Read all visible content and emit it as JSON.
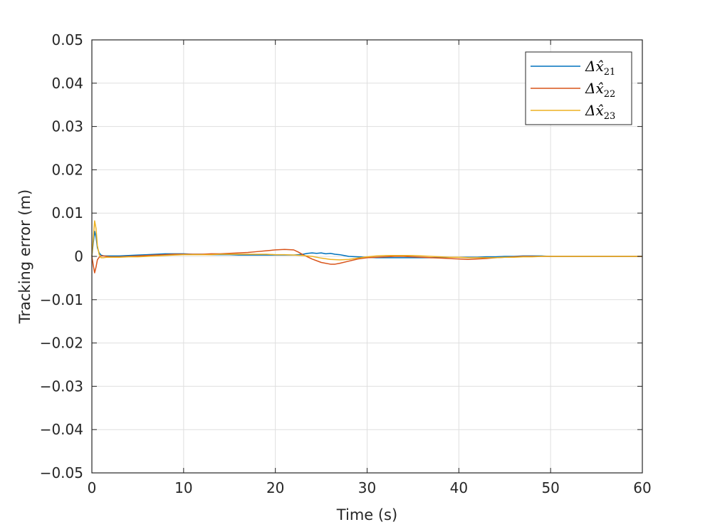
{
  "chart_data": {
    "type": "line",
    "title": "",
    "xlabel": "Time (s)",
    "ylabel": "Tracking error (m)",
    "xlim": [
      0,
      60
    ],
    "ylim": [
      -0.05,
      0.05
    ],
    "x_ticks": [
      0,
      10,
      20,
      30,
      40,
      50,
      60
    ],
    "x_tick_labels": [
      "0",
      "10",
      "20",
      "30",
      "40",
      "50",
      "60"
    ],
    "y_ticks": [
      -0.05,
      -0.04,
      -0.03,
      -0.02,
      -0.01,
      0,
      0.01,
      0.02,
      0.03,
      0.04,
      0.05
    ],
    "y_tick_labels": [
      "−0.05",
      "−0.04",
      "−0.03",
      "−0.02",
      "−0.01",
      "0",
      "0.01",
      "0.02",
      "0.03",
      "0.04",
      "0.05"
    ],
    "grid": true,
    "legend_position": "top-right",
    "series": [
      {
        "name": "Δx̂",
        "subscript": "21",
        "color": "#0072BD",
        "x": [
          0,
          0.15,
          0.3,
          0.45,
          0.6,
          0.8,
          1.0,
          1.3,
          1.6,
          2.0,
          3,
          4,
          5,
          6,
          7,
          8,
          9,
          10,
          11,
          12,
          13,
          14,
          15,
          16,
          17,
          18,
          19,
          20,
          21,
          22,
          22.5,
          23,
          23.5,
          24,
          24.5,
          25,
          25.5,
          26,
          26.5,
          27,
          27.5,
          28,
          29,
          30,
          31,
          32,
          33,
          34,
          35,
          36,
          37,
          38,
          39,
          40,
          41,
          42,
          43,
          44,
          45,
          46,
          47,
          48,
          49,
          50,
          52,
          54,
          56,
          58,
          60
        ],
        "y": [
          0,
          0.003,
          0.0058,
          0.0045,
          0.002,
          0.0008,
          0.0003,
          0.0001,
          0.0001,
          0.0001,
          0.0001,
          0.0002,
          0.0003,
          0.0004,
          0.0005,
          0.0006,
          0.0006,
          0.0006,
          0.0005,
          0.0005,
          0.0004,
          0.0004,
          0.0004,
          0.0003,
          0.0003,
          0.0003,
          0.0003,
          0.0003,
          0.0003,
          0.0003,
          0.0004,
          0.0005,
          0.0007,
          0.0008,
          0.0007,
          0.0008,
          0.0006,
          0.0007,
          0.0005,
          0.0004,
          0.0002,
          0.0,
          -0.0001,
          -0.0002,
          -0.0003,
          -0.0003,
          -0.0003,
          -0.0003,
          -0.0003,
          -0.0003,
          -0.0003,
          -0.0002,
          -0.0002,
          -0.0002,
          -0.0002,
          -0.0002,
          -0.0001,
          -0.0001,
          0.0,
          0.0,
          0.0001,
          0.0001,
          0.0001,
          0.0,
          0.0,
          0.0,
          0.0,
          0.0,
          0.0
        ]
      },
      {
        "name": "Δx̂",
        "subscript": "22",
        "color": "#D95319",
        "x": [
          0,
          0.15,
          0.3,
          0.45,
          0.6,
          0.8,
          1.0,
          1.3,
          1.6,
          2.0,
          3,
          4,
          5,
          6,
          7,
          8,
          9,
          10,
          11,
          12,
          13,
          14,
          15,
          16,
          17,
          18,
          19,
          20,
          21,
          22,
          22.5,
          23,
          24,
          25,
          26,
          26.5,
          27,
          28,
          29,
          30,
          31,
          32,
          33,
          34,
          35,
          36,
          37,
          38,
          39,
          40,
          41,
          42,
          43,
          44,
          45,
          46,
          47,
          48,
          49,
          50,
          52,
          54,
          56,
          58,
          60
        ],
        "y": [
          0,
          -0.002,
          -0.0038,
          -0.0025,
          -0.0008,
          -0.0002,
          0.0001,
          0.0001,
          0.0,
          -0.0001,
          -0.0001,
          0.0,
          0.0001,
          0.0002,
          0.0003,
          0.0004,
          0.0005,
          0.0005,
          0.0005,
          0.0005,
          0.0006,
          0.0006,
          0.0007,
          0.0008,
          0.0009,
          0.0011,
          0.0013,
          0.0015,
          0.0016,
          0.0015,
          0.001,
          0.0004,
          -0.0006,
          -0.0014,
          -0.0018,
          -0.0018,
          -0.0016,
          -0.0011,
          -0.0006,
          -0.0003,
          -0.0002,
          -0.0001,
          0.0,
          0.0,
          -0.0001,
          -0.0002,
          -0.0003,
          -0.0004,
          -0.0005,
          -0.0006,
          -0.0007,
          -0.0006,
          -0.0005,
          -0.0003,
          -0.0002,
          -0.0001,
          0.0,
          0.0,
          0.0,
          0.0,
          0.0,
          0.0,
          0.0,
          0.0,
          0.0
        ]
      },
      {
        "name": "Δx̂",
        "subscript": "23",
        "color": "#EDB120",
        "x": [
          0,
          0.15,
          0.3,
          0.45,
          0.6,
          0.8,
          1.0,
          1.3,
          1.6,
          2.0,
          3,
          4,
          5,
          6,
          7,
          8,
          9,
          10,
          11,
          12,
          13,
          14,
          15,
          16,
          17,
          18,
          19,
          20,
          21,
          22,
          23,
          24,
          25,
          26,
          27,
          28,
          29,
          30,
          31,
          32,
          33,
          34,
          35,
          36,
          37,
          38,
          39,
          40,
          41,
          42,
          43,
          44,
          45,
          46,
          47,
          48,
          49,
          50,
          52,
          54,
          56,
          58,
          60
        ],
        "y": [
          0,
          0.004,
          0.0082,
          0.0065,
          0.0025,
          0.0004,
          -0.0003,
          -0.0003,
          -0.0002,
          -0.0002,
          -0.0002,
          -0.0001,
          -0.0001,
          0.0,
          0.0001,
          0.0002,
          0.0003,
          0.0004,
          0.0004,
          0.0004,
          0.0004,
          0.0005,
          0.0005,
          0.0005,
          0.0005,
          0.0005,
          0.0005,
          0.0004,
          0.0004,
          0.0003,
          0.0002,
          0.0,
          -0.0004,
          -0.0007,
          -0.0008,
          -0.0007,
          -0.0004,
          -0.0001,
          0.0001,
          0.0002,
          0.0002,
          0.0002,
          0.0002,
          0.0001,
          0.0,
          -0.0001,
          -0.0002,
          -0.0002,
          -0.0003,
          -0.0003,
          -0.0003,
          -0.0003,
          -0.0002,
          -0.0002,
          -0.0001,
          -0.0001,
          0.0,
          0.0,
          0.0,
          0.0,
          0.0,
          0.0,
          0.0
        ]
      }
    ]
  }
}
